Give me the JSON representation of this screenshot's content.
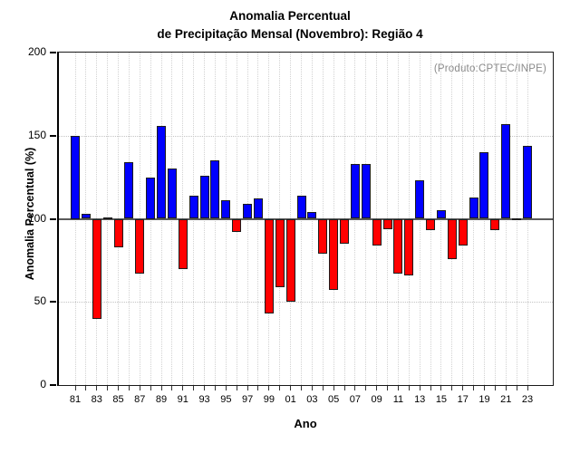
{
  "title": {
    "line1": "Anomalia Percentual",
    "line2": "de Precipitação Mensal (Novembro): Região 4"
  },
  "annotation": "(Produto:CPTEC/INPE)",
  "chart_data": {
    "type": "bar",
    "title": "Anomalia Percentual de Precipitação Mensal (Novembro): Região 4",
    "xlabel": "Ano",
    "ylabel": "Anomalia Percentual (%)",
    "ylim": [
      0,
      200
    ],
    "yticks": [
      0,
      50,
      100,
      150,
      200
    ],
    "hgrid_at": [
      50,
      150
    ],
    "baseline": 100,
    "grid": "dotted vertical line per year; dotted horizontal at 50 and 150",
    "legend": "none",
    "categories": [
      "81",
      "82",
      "83",
      "84",
      "85",
      "86",
      "87",
      "88",
      "89",
      "90",
      "91",
      "92",
      "93",
      "94",
      "95",
      "96",
      "97",
      "98",
      "99",
      "00",
      "01",
      "02",
      "03",
      "04",
      "05",
      "06",
      "07",
      "08",
      "09",
      "10",
      "11",
      "12",
      "13",
      "14",
      "15",
      "16",
      "17",
      "18",
      "19",
      "20",
      "21",
      "22",
      "23"
    ],
    "x_tick_labels": [
      "81",
      "83",
      "85",
      "87",
      "89",
      "91",
      "93",
      "95",
      "97",
      "99",
      "01",
      "03",
      "05",
      "07",
      "09",
      "11",
      "13",
      "15",
      "17",
      "19",
      "21",
      "23"
    ],
    "values": [
      150,
      103,
      40,
      101,
      83,
      134,
      67,
      125,
      156,
      130,
      70,
      114,
      126,
      135,
      111,
      92,
      109,
      112,
      43,
      59,
      50,
      114,
      104,
      79,
      57,
      85,
      133,
      133,
      84,
      94,
      67,
      66,
      123,
      93,
      105,
      76,
      84,
      113,
      140,
      93,
      157,
      100,
      144
    ],
    "colors": {
      "above_baseline": "#0000FF",
      "below_baseline": "#FF0000",
      "bar_border": "#1c1c1c",
      "annotation_text": "#8a8a8a",
      "axis": "#000000"
    }
  }
}
